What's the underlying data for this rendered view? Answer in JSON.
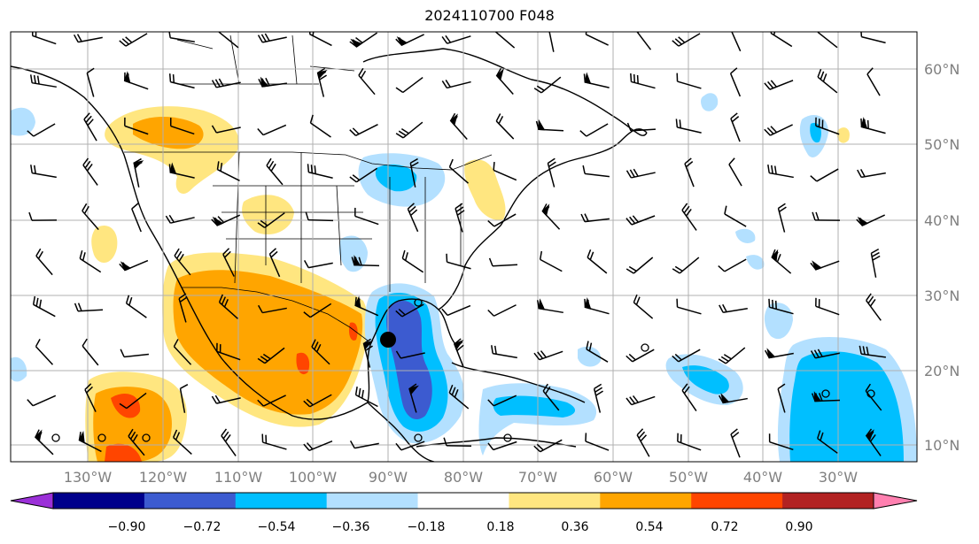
{
  "title": "2024110700 F048",
  "longitude_labels": [
    "130°W",
    "120°W",
    "110°W",
    "100°W",
    "90°W",
    "80°W",
    "70°W",
    "60°W",
    "50°W",
    "40°W",
    "30°W"
  ],
  "latitude_labels": [
    "60°N",
    "50°N",
    "40°N",
    "30°N",
    "20°N",
    "10°N"
  ],
  "colorbar": {
    "tick_labels": [
      "−0.90",
      "−0.72",
      "−0.54",
      "−0.36",
      "−0.18",
      "0.18",
      "0.36",
      "0.54",
      "0.72",
      "0.90"
    ],
    "colors": [
      "#9b30d8",
      "#00008b",
      "#3c5bd0",
      "#00bfff",
      "#b3e0ff",
      "#ffffff",
      "#ffe680",
      "#ffa500",
      "#ff4500",
      "#b22222",
      "#ff80b0"
    ]
  },
  "legend_colors": {
    "light_blue": "#b3e0ff",
    "blue": "#00bfff",
    "mid_blue": "#3c5bd0",
    "yellow": "#ffe680",
    "orange": "#ffa500",
    "red": "#ff4500"
  }
}
